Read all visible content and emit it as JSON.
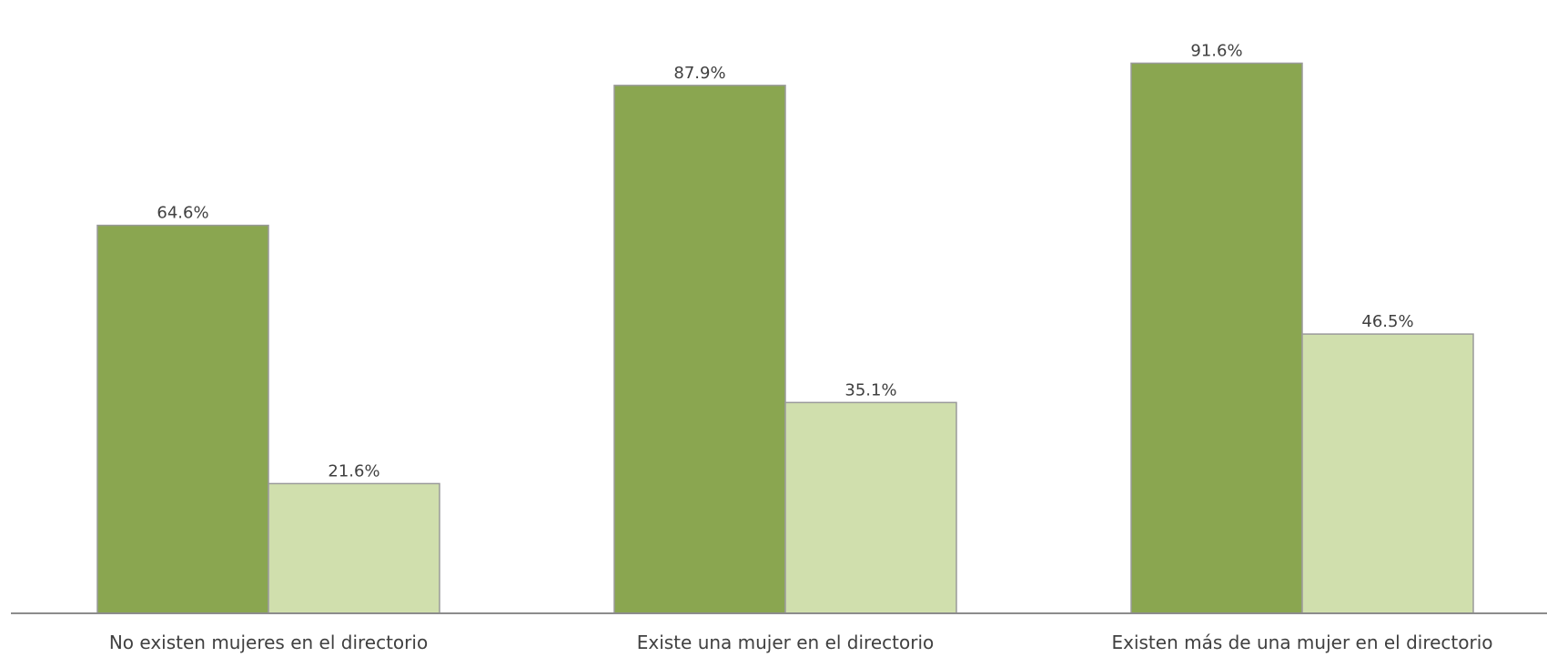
{
  "chart_data": {
    "type": "bar",
    "categories": [
      "No existen mujeres en el directorio",
      "Existe una mujer en el directorio",
      "Existen más de una mujer en el directorio"
    ],
    "series": [
      {
        "values": [
          64.6,
          87.9,
          91.6
        ],
        "labels": [
          "64.6%",
          "87.9%",
          "91.6%"
        ],
        "color": "#8aa650"
      },
      {
        "values": [
          21.6,
          35.1,
          46.5
        ],
        "labels": [
          "21.6%",
          "35.1%",
          "46.5%"
        ],
        "color": "#d0dfad"
      }
    ],
    "ylim": [
      0,
      100
    ],
    "grid": false,
    "legend": "none"
  }
}
